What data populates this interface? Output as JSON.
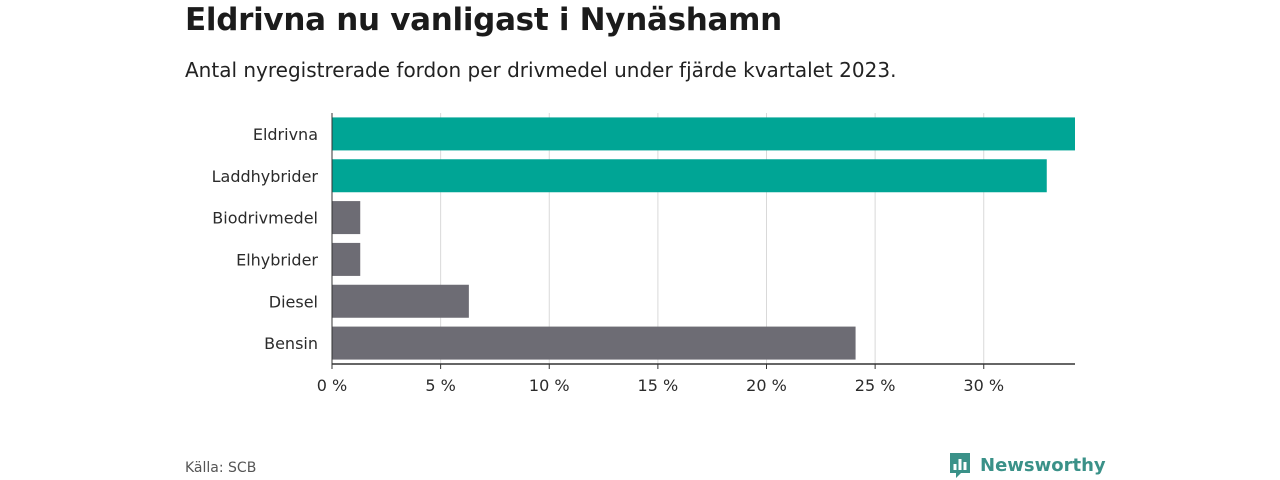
{
  "header": {
    "title": "Eldrivna nu vanligast i Nynäshamn",
    "subtitle": "Antal nyregistrerade fordon per drivmedel under fjärde kvartalet 2023."
  },
  "chart_data": {
    "type": "bar",
    "orientation": "horizontal",
    "title": "Eldrivna nu vanligast i Nynäshamn",
    "subtitle": "Antal nyregistrerade fordon per drivmedel under fjärde kvartalet 2023.",
    "categories": [
      "Eldrivna",
      "Laddhybrider",
      "Biodrivmedel",
      "Elhybrider",
      "Diesel",
      "Bensin"
    ],
    "values": [
      34.2,
      32.9,
      1.3,
      1.3,
      6.3,
      24.1
    ],
    "colors": [
      "#00a595",
      "#00a595",
      "#6d6c74",
      "#6d6c74",
      "#6d6c74",
      "#6d6c74"
    ],
    "xlim": [
      0,
      34.2
    ],
    "xticks": [
      0,
      5,
      10,
      15,
      20,
      25,
      30
    ],
    "xtick_labels": [
      "0 %",
      "5 %",
      "10 %",
      "15 %",
      "20 %",
      "25 %",
      "30 %"
    ],
    "xlabel": "",
    "ylabel": "",
    "grid": true,
    "gridline_color": "#d9d9d9",
    "axis_color": "#333333"
  },
  "footer": {
    "source": "Källa: SCB",
    "brand": "Newsworthy",
    "brand_icon": "newsworthy-logo-icon",
    "brand_color": "#3a9188"
  }
}
